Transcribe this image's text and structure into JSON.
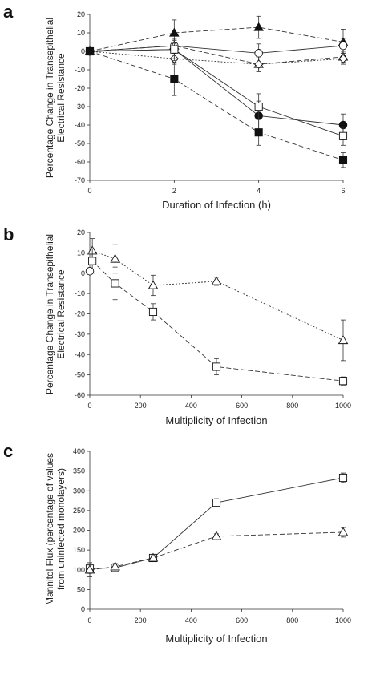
{
  "chart_data": [
    {
      "panel": "a",
      "type": "line",
      "xlabel": "Duration of Infection (h)",
      "ylabel_lines": [
        "Percentage Change in Transepithelial",
        "Electrical Resistance"
      ],
      "x_ticks": [
        "0",
        "2",
        "4",
        "6"
      ],
      "y_ticks": [
        "20",
        "10",
        "0",
        "-10",
        "-20",
        "-30",
        "-40",
        "-50",
        "-60",
        "-70"
      ],
      "xlim": [
        0,
        6
      ],
      "ylim": [
        -70,
        20
      ],
      "series": [
        {
          "marker": "filled-triangle",
          "x": [
            0,
            2,
            4,
            6
          ],
          "y": [
            0,
            10,
            13,
            5
          ],
          "err": [
            0,
            7,
            6,
            7
          ],
          "dash": "6,3"
        },
        {
          "marker": "open-circle",
          "x": [
            0,
            2,
            4,
            6
          ],
          "y": [
            0,
            3,
            -1,
            3
          ],
          "err": [
            0,
            4,
            5,
            4
          ],
          "dash": "none"
        },
        {
          "marker": "open-triangle",
          "x": [
            0,
            2,
            4,
            6
          ],
          "y": [
            0,
            3,
            -7,
            -3
          ],
          "err": [
            0,
            3,
            4,
            3
          ],
          "dash": "6,3"
        },
        {
          "marker": "open-diamond",
          "x": [
            0,
            2,
            4,
            6
          ],
          "y": [
            0,
            -4,
            -7,
            -4
          ],
          "err": [
            0,
            3,
            4,
            3
          ],
          "dash": "2,2"
        },
        {
          "marker": "filled-circle",
          "x": [
            0,
            2,
            4,
            6
          ],
          "y": [
            0,
            1,
            -35,
            -40
          ],
          "err": [
            0,
            6,
            8,
            6
          ],
          "dash": "none"
        },
        {
          "marker": "open-square",
          "x": [
            0,
            2,
            4,
            6
          ],
          "y": [
            0,
            1,
            -30,
            -46
          ],
          "err": [
            0,
            5,
            7,
            5
          ],
          "dash": "none"
        },
        {
          "marker": "filled-square",
          "x": [
            0,
            2,
            4,
            6
          ],
          "y": [
            0,
            -15,
            -44,
            -59
          ],
          "err": [
            0,
            9,
            7,
            4
          ],
          "dash": "6,3"
        }
      ]
    },
    {
      "panel": "b",
      "type": "line",
      "xlabel": "Multiplicity of Infection",
      "ylabel_lines": [
        "Percentage Change in Transepithelial",
        "Electrical Resistance"
      ],
      "x_ticks": [
        "0",
        "200",
        "400",
        "600",
        "800",
        "1000"
      ],
      "y_ticks": [
        "20",
        "10",
        "0",
        "-10",
        "-20",
        "-30",
        "-40",
        "-50",
        "-60"
      ],
      "xlim": [
        0,
        1000
      ],
      "ylim": [
        -60,
        20
      ],
      "series": [
        {
          "marker": "open-triangle",
          "x": [
            10,
            100,
            250,
            500,
            1000
          ],
          "y": [
            11,
            7,
            -6,
            -4,
            -33
          ],
          "err": [
            6,
            7,
            5,
            2,
            10
          ],
          "dash": "2,2"
        },
        {
          "marker": "open-square",
          "x": [
            10,
            100,
            250,
            500,
            1000
          ],
          "y": [
            6,
            -5,
            -19,
            -46,
            -53
          ],
          "err": [
            6,
            8,
            4,
            4,
            2
          ],
          "dash": "6,3"
        },
        {
          "marker": "open-circle",
          "x": [
            0
          ],
          "y": [
            1
          ],
          "err": [
            0
          ],
          "dash": "none"
        }
      ]
    },
    {
      "panel": "c",
      "type": "line",
      "xlabel": "Multiplicity of Infection",
      "ylabel_lines": [
        "Mannitol Flux (percentage of values",
        "from uninfected monolayers)"
      ],
      "x_ticks": [
        "0",
        "200",
        "400",
        "600",
        "800",
        "1000"
      ],
      "y_ticks": [
        "400",
        "350",
        "300",
        "250",
        "200",
        "150",
        "100",
        "50",
        "0"
      ],
      "xlim": [
        0,
        1000
      ],
      "ylim": [
        0,
        400
      ],
      "series": [
        {
          "marker": "open-square",
          "x": [
            0,
            100,
            250,
            500,
            1000
          ],
          "y": [
            103,
            105,
            130,
            270,
            333
          ],
          "err": [
            12,
            8,
            6,
            10,
            12
          ],
          "dash": "none"
        },
        {
          "marker": "open-triangle",
          "x": [
            0,
            100,
            250,
            500,
            1000
          ],
          "y": [
            100,
            108,
            130,
            185,
            195
          ],
          "err": [
            18,
            8,
            6,
            6,
            12
          ],
          "dash": "6,3"
        }
      ]
    }
  ]
}
